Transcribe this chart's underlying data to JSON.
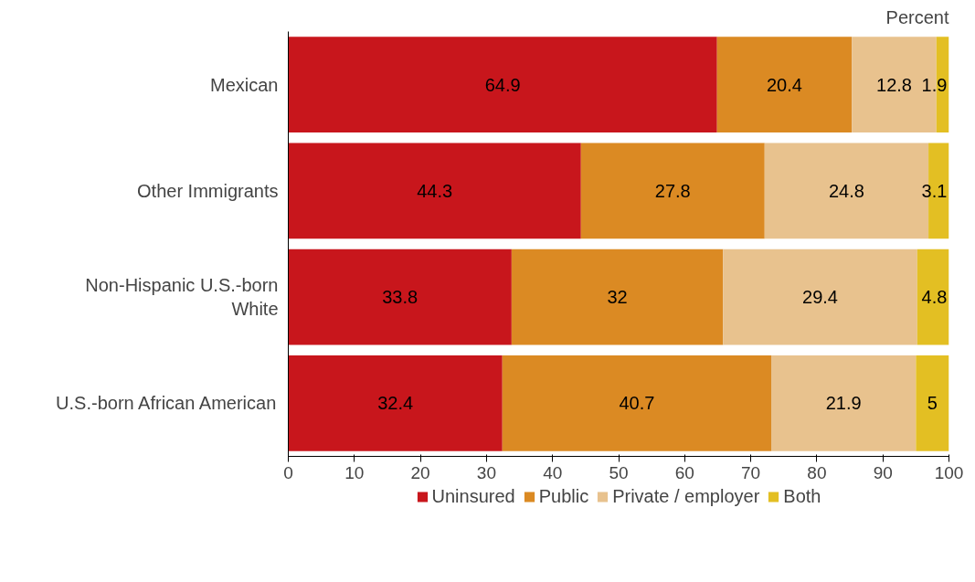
{
  "chart_data": {
    "type": "bar",
    "orientation": "horizontal",
    "stacked": true,
    "data_labels": true,
    "legend": "bottom",
    "grid": false,
    "annotations": [
      "Percent"
    ],
    "categories": [
      "Mexican",
      "Other Immigrants",
      "Non-Hispanic U.S.-born\nWhite",
      "U.S.-born African American"
    ],
    "xlim": [
      0,
      100
    ],
    "xticks": [
      0,
      10,
      20,
      30,
      40,
      50,
      60,
      70,
      80,
      90,
      100
    ],
    "series": [
      {
        "name": "Uninsured",
        "color": "#c8161c",
        "values": [
          64.9,
          44.3,
          33.8,
          32.4
        ]
      },
      {
        "name": "Public",
        "color": "#db8a23",
        "values": [
          20.4,
          27.8,
          32,
          40.7
        ]
      },
      {
        "name": "Private / employer",
        "color": "#e8c28e",
        "values": [
          12.8,
          24.8,
          29.4,
          21.9
        ]
      },
      {
        "name": "Both",
        "color": "#e3bf23",
        "values": [
          1.9,
          3.1,
          4.8,
          5
        ]
      }
    ]
  }
}
